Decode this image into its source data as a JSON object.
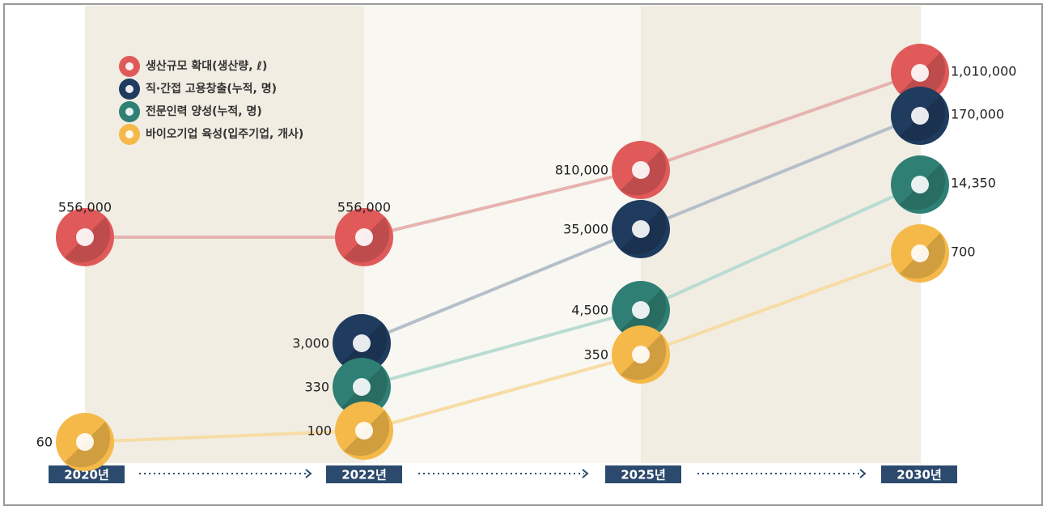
{
  "chart_data": {
    "type": "line",
    "categories": [
      "2020년",
      "2022년",
      "2025년",
      "2030년"
    ],
    "series": [
      {
        "name": "생산규모 확대(생산량, ℓ)",
        "color": "#e05a5a",
        "values": [
          556000,
          556000,
          810000,
          1010000
        ],
        "value_labels": [
          "556,000",
          "556,000",
          "810,000",
          "1,010,000"
        ]
      },
      {
        "name": "직·간접 고용창출(누적, 명)",
        "color": "#1f3b5e",
        "values": [
          null,
          3000,
          35000,
          170000
        ],
        "value_labels": [
          null,
          "3,000",
          "35,000",
          "170,000"
        ]
      },
      {
        "name": "전문인력 양성(누적, 명)",
        "color": "#2f7f74",
        "values": [
          null,
          330,
          4500,
          14350
        ],
        "value_labels": [
          null,
          "330",
          "4,500",
          "14,350"
        ]
      },
      {
        "name": "바이오기업 육성(입주기업, 개사)",
        "color": "#f5b94a",
        "values": [
          60,
          100,
          350,
          700
        ],
        "value_labels": [
          "60",
          "100",
          "350",
          "700"
        ]
      }
    ]
  }
}
